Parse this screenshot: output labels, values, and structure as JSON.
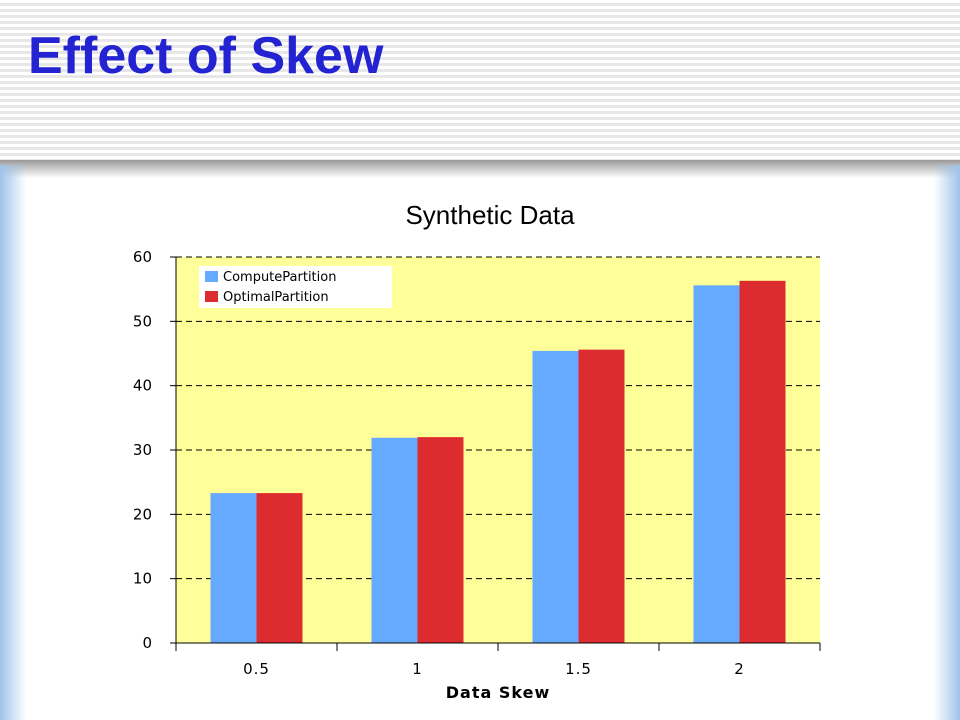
{
  "slide": {
    "title": "Effect of Skew"
  },
  "colors": {
    "title": "#2323d2",
    "plot_bg": "#ffff99",
    "series_1": "#66aaff",
    "series_2": "#dd2c30"
  },
  "chart_data": {
    "type": "bar",
    "title": "Synthetic Data",
    "xlabel": "Data Skew",
    "ylabel": "",
    "categories": [
      "0.5",
      "1",
      "1.5",
      "2"
    ],
    "series": [
      {
        "name": "ComputePartition",
        "values": [
          23.3,
          31.9,
          45.4,
          55.6
        ]
      },
      {
        "name": "OptimalPartition",
        "values": [
          23.3,
          32.0,
          45.6,
          56.3
        ]
      }
    ],
    "ylim": [
      0,
      60
    ],
    "yticks": [
      "0",
      "10",
      "20",
      "30",
      "40",
      "50",
      "60"
    ],
    "grid": true,
    "legend_position": "top-left"
  }
}
